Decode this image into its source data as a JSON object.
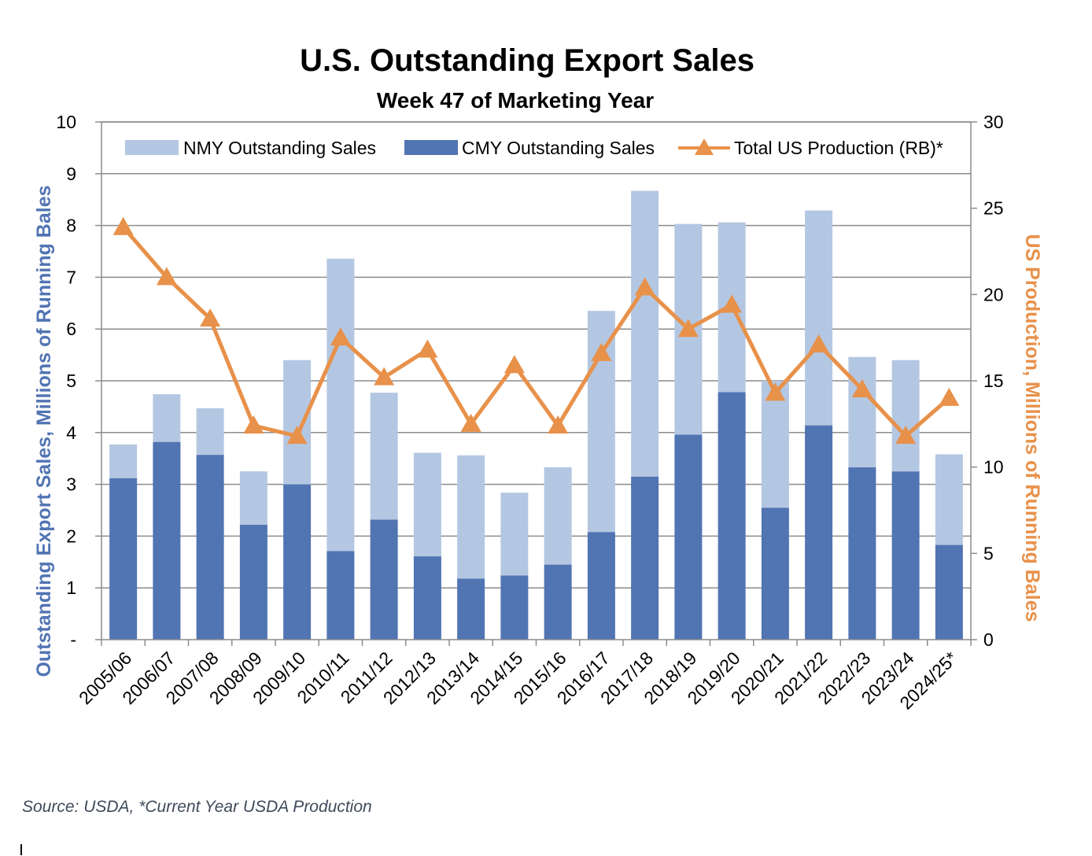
{
  "chart_data": {
    "type": "bar",
    "title": "U.S. Outstanding Export Sales",
    "subtitle": "Week 47 of Marketing Year",
    "categories": [
      "2005/06",
      "2006/07",
      "2007/08",
      "2008/09",
      "2009/10",
      "2010/11",
      "2011/12",
      "2012/13",
      "2013/14",
      "2014/15",
      "2015/16",
      "2016/17",
      "2017/18",
      "2018/19",
      "2019/20",
      "2020/21",
      "2021/22",
      "2022/23",
      "2023/24",
      "2024/25*"
    ],
    "series": [
      {
        "name": "NMY Outstanding Sales",
        "kind": "stacked-bar",
        "axis": "left",
        "color": "#b4c7e2",
        "values": [
          0.65,
          0.92,
          0.9,
          1.03,
          2.4,
          5.65,
          2.45,
          2.0,
          2.38,
          1.6,
          1.88,
          4.27,
          5.52,
          4.07,
          3.28,
          2.45,
          4.15,
          2.13,
          2.15,
          1.75
        ]
      },
      {
        "name": "CMY Outstanding Sales",
        "kind": "stacked-bar",
        "axis": "left",
        "color": "#5174b3",
        "values": [
          3.12,
          3.82,
          3.57,
          2.22,
          3.0,
          1.71,
          2.32,
          1.61,
          1.18,
          1.24,
          1.45,
          2.08,
          3.15,
          3.96,
          4.78,
          2.55,
          4.14,
          3.33,
          3.25,
          1.83
        ]
      },
      {
        "name": "Total US Production (RB)*",
        "kind": "line",
        "axis": "right",
        "color": "#e8914a",
        "values": [
          23.9,
          21.0,
          18.6,
          12.4,
          11.8,
          17.5,
          15.2,
          16.8,
          12.5,
          15.9,
          12.4,
          16.6,
          20.4,
          18.0,
          19.4,
          14.3,
          17.1,
          14.5,
          11.8,
          14.0
        ]
      }
    ],
    "y_left": {
      "label": "Outstanding Export Sales, Millions of Running Bales",
      "min": 0,
      "max": 10,
      "ticks": [
        "-",
        "1",
        "2",
        "3",
        "4",
        "5",
        "6",
        "7",
        "8",
        "9",
        "10"
      ],
      "label_color": "#5174b3"
    },
    "y_right": {
      "label": "US Production, Millions of Running Bales",
      "min": 0,
      "max": 30,
      "ticks": [
        "0",
        "5",
        "10",
        "15",
        "20",
        "25",
        "30"
      ],
      "label_color": "#e8914a"
    },
    "grid": true,
    "legend_position": "top"
  },
  "source_note": "Source: USDA, *Current Year USDA Production"
}
